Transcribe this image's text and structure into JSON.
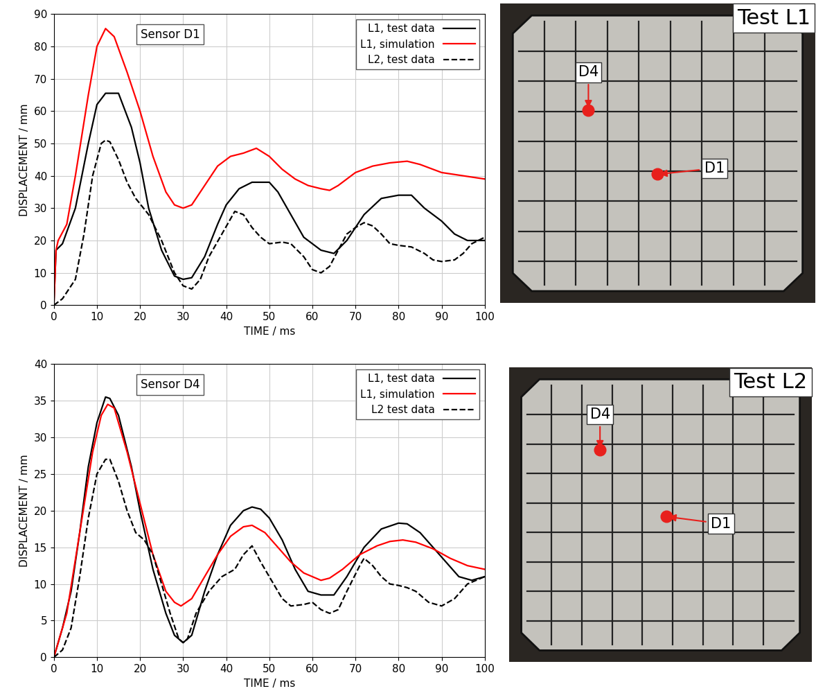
{
  "chart_data": [
    {
      "type": "line",
      "annotations": [
        "Sensor D1"
      ],
      "x_label": "TIME / ms",
      "y_label": "DISPLACEMENT / mm",
      "xlim": [
        0,
        100
      ],
      "xticks": [
        0,
        10,
        20,
        30,
        40,
        50,
        60,
        70,
        80,
        90,
        100
      ],
      "ylim": [
        0,
        90
      ],
      "yticks": [
        0,
        10,
        20,
        30,
        40,
        50,
        60,
        70,
        80,
        90
      ],
      "grid": true,
      "legend": "upper right",
      "series": [
        {
          "name": "L1, test data",
          "color": "#000000",
          "line_style": "solid",
          "x": [
            0,
            0.5,
            2,
            5,
            8,
            10,
            12,
            15,
            18,
            20,
            22,
            25,
            28,
            30,
            32,
            35,
            38,
            40,
            43,
            46,
            50,
            52,
            55,
            58,
            62,
            65,
            68,
            72,
            76,
            80,
            83,
            86,
            90,
            93,
            96,
            100
          ],
          "values": [
            0,
            17,
            19,
            30,
            50,
            62,
            65.5,
            65.5,
            55,
            44,
            30,
            17,
            9,
            8,
            8.5,
            15,
            25,
            31,
            36,
            38,
            38,
            35,
            28,
            21,
            17,
            16,
            20,
            28,
            33,
            34,
            34,
            30,
            26,
            22,
            20,
            20
          ]
        },
        {
          "name": "L1, simulation",
          "color": "#ff0000",
          "line_style": "solid",
          "x": [
            0,
            0.5,
            1,
            3,
            5,
            8,
            10,
            12,
            14,
            17,
            20,
            23,
            26,
            28,
            30,
            32,
            35,
            38,
            41,
            44,
            47,
            50,
            53,
            56,
            59,
            62,
            64,
            66,
            70,
            74,
            78,
            82,
            85,
            90,
            95,
            100
          ],
          "values": [
            0,
            17,
            20,
            25,
            40,
            65,
            80,
            85.5,
            83,
            72,
            60,
            46,
            35,
            31,
            30,
            31,
            37,
            43,
            46,
            47,
            48.5,
            46,
            42,
            39,
            37,
            36,
            35.5,
            37,
            41,
            43,
            44,
            44.5,
            43.5,
            41,
            40,
            39
          ]
        },
        {
          "name": "L2, test data",
          "color": "#000000",
          "line_style": "dashed",
          "x": [
            0,
            2,
            5,
            7,
            9,
            11,
            12,
            13,
            15,
            17,
            19,
            22,
            25,
            28,
            30,
            32,
            34,
            36,
            39,
            42,
            44,
            46,
            48,
            50,
            53,
            55,
            58,
            60,
            62,
            64,
            66,
            68,
            70,
            72,
            74,
            76,
            78,
            80,
            83,
            86,
            88,
            90,
            93,
            95,
            97,
            100
          ],
          "values": [
            0,
            2,
            8,
            22,
            40,
            50,
            51,
            50.5,
            45,
            38,
            33,
            28,
            20,
            10,
            6,
            5,
            8,
            15,
            22,
            29,
            28,
            24,
            21,
            19,
            19.5,
            19,
            15,
            11,
            10,
            12,
            17,
            22,
            24,
            25.5,
            24.5,
            22,
            19,
            18.5,
            18,
            16,
            14,
            13.5,
            14,
            16,
            19,
            21
          ]
        }
      ]
    },
    {
      "type": "line",
      "annotations": [
        "Sensor D4"
      ],
      "x_label": "TIME / ms",
      "y_label": "DISPLACEMENT / mm",
      "xlim": [
        0,
        100
      ],
      "xticks": [
        0,
        10,
        20,
        30,
        40,
        50,
        60,
        70,
        80,
        90,
        100
      ],
      "ylim": [
        0,
        40
      ],
      "yticks": [
        0,
        5,
        10,
        15,
        20,
        25,
        30,
        35,
        40
      ],
      "grid": true,
      "legend": "upper right",
      "series": [
        {
          "name": "L1, test data",
          "color": "#000000",
          "line_style": "solid",
          "x": [
            0,
            2,
            4,
            6,
            8,
            10,
            12,
            13,
            15,
            18,
            20,
            23,
            26,
            28,
            30,
            32,
            35,
            38,
            41,
            44,
            46,
            48,
            50,
            53,
            56,
            59,
            62,
            65,
            68,
            72,
            76,
            80,
            82,
            85,
            88,
            91,
            94,
            97,
            100
          ],
          "values": [
            0,
            4,
            9,
            17,
            26,
            32,
            35.5,
            35.3,
            33,
            26,
            20,
            12,
            6,
            3,
            2,
            3,
            9,
            14,
            18,
            20,
            20.5,
            20.2,
            19,
            16,
            12,
            9,
            8.5,
            8.5,
            11,
            15,
            17.5,
            18.3,
            18.2,
            17,
            15,
            13,
            11,
            10.5,
            11
          ]
        },
        {
          "name": "L1, simulation",
          "color": "#ff0000",
          "line_style": "solid",
          "x": [
            0,
            3,
            6,
            9,
            11,
            12.5,
            14,
            17,
            20,
            23,
            26,
            28,
            29.5,
            32,
            35,
            38,
            41,
            44,
            46,
            49,
            52,
            55,
            58,
            62,
            64,
            67,
            71,
            75,
            78,
            81,
            84,
            88,
            92,
            96,
            100
          ],
          "values": [
            0,
            6,
            17,
            28,
            33,
            34.5,
            34,
            28,
            21,
            14,
            9,
            7.5,
            7,
            8,
            11,
            14,
            16.5,
            17.8,
            18,
            17,
            15,
            13,
            11.5,
            10.5,
            10.8,
            12,
            14,
            15.2,
            15.8,
            16,
            15.7,
            14.8,
            13.5,
            12.5,
            12
          ]
        },
        {
          "name": "L2 test data",
          "color": "#000000",
          "line_style": "dashed",
          "x": [
            0,
            2,
            4,
            6,
            8,
            10,
            12,
            13,
            15,
            17,
            19,
            21,
            23,
            25,
            27,
            29,
            30,
            31,
            33,
            36,
            39,
            42,
            44,
            46,
            48,
            50,
            53,
            55,
            58,
            60,
            62,
            64,
            66,
            68,
            71,
            72,
            74,
            76,
            78,
            80,
            82,
            84,
            87,
            90,
            93,
            96,
            100
          ],
          "values": [
            0,
            1,
            4,
            11,
            19,
            25,
            27,
            27,
            24,
            20,
            17,
            16,
            14,
            10,
            6,
            2.5,
            2,
            2.5,
            6,
            9,
            11,
            12,
            14,
            15.2,
            13,
            11,
            8,
            7,
            7.2,
            7.5,
            6.5,
            6,
            6.5,
            9,
            12.5,
            13.5,
            12.5,
            11,
            10,
            9.8,
            9.5,
            9,
            7.5,
            7,
            8,
            10,
            11
          ]
        }
      ]
    }
  ],
  "photos": [
    {
      "title": "Test L1",
      "markers": [
        "D4",
        "D1"
      ]
    },
    {
      "title": "Test L2",
      "markers": [
        "D4",
        "D1"
      ]
    }
  ]
}
